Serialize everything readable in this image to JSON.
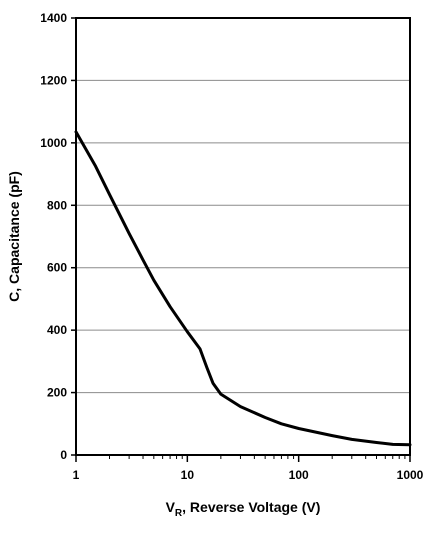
{
  "chart_data": {
    "type": "line",
    "xscale": "log",
    "xlim": [
      1,
      1000
    ],
    "ylim": [
      0,
      1400
    ],
    "x_ticks": [
      1,
      10,
      100,
      1000
    ],
    "x_tick_labels": [
      "1",
      "10",
      "100",
      "1000"
    ],
    "y_ticks": [
      0,
      200,
      400,
      600,
      800,
      1000,
      1200,
      1400
    ],
    "y_tick_labels": [
      "0",
      "200",
      "400",
      "600",
      "800",
      "1000",
      "1200",
      "1400"
    ],
    "grid": "horizontal",
    "xlabel_main": "V",
    "xlabel_sub": "R",
    "xlabel_rest": ", Reverse Voltage (V)",
    "ylabel": "C, Capacitance (pF)",
    "series": [
      {
        "color": "#000000",
        "points": [
          [
            1,
            1035
          ],
          [
            1.5,
            925
          ],
          [
            2,
            835
          ],
          [
            3,
            710
          ],
          [
            4,
            625
          ],
          [
            5,
            560
          ],
          [
            7,
            475
          ],
          [
            10,
            395
          ],
          [
            13,
            340
          ],
          [
            15,
            280
          ],
          [
            17,
            230
          ],
          [
            20,
            195
          ],
          [
            30,
            155
          ],
          [
            50,
            120
          ],
          [
            70,
            100
          ],
          [
            100,
            85
          ],
          [
            200,
            62
          ],
          [
            300,
            50
          ],
          [
            500,
            40
          ],
          [
            700,
            34
          ],
          [
            1000,
            33
          ]
        ]
      }
    ]
  }
}
